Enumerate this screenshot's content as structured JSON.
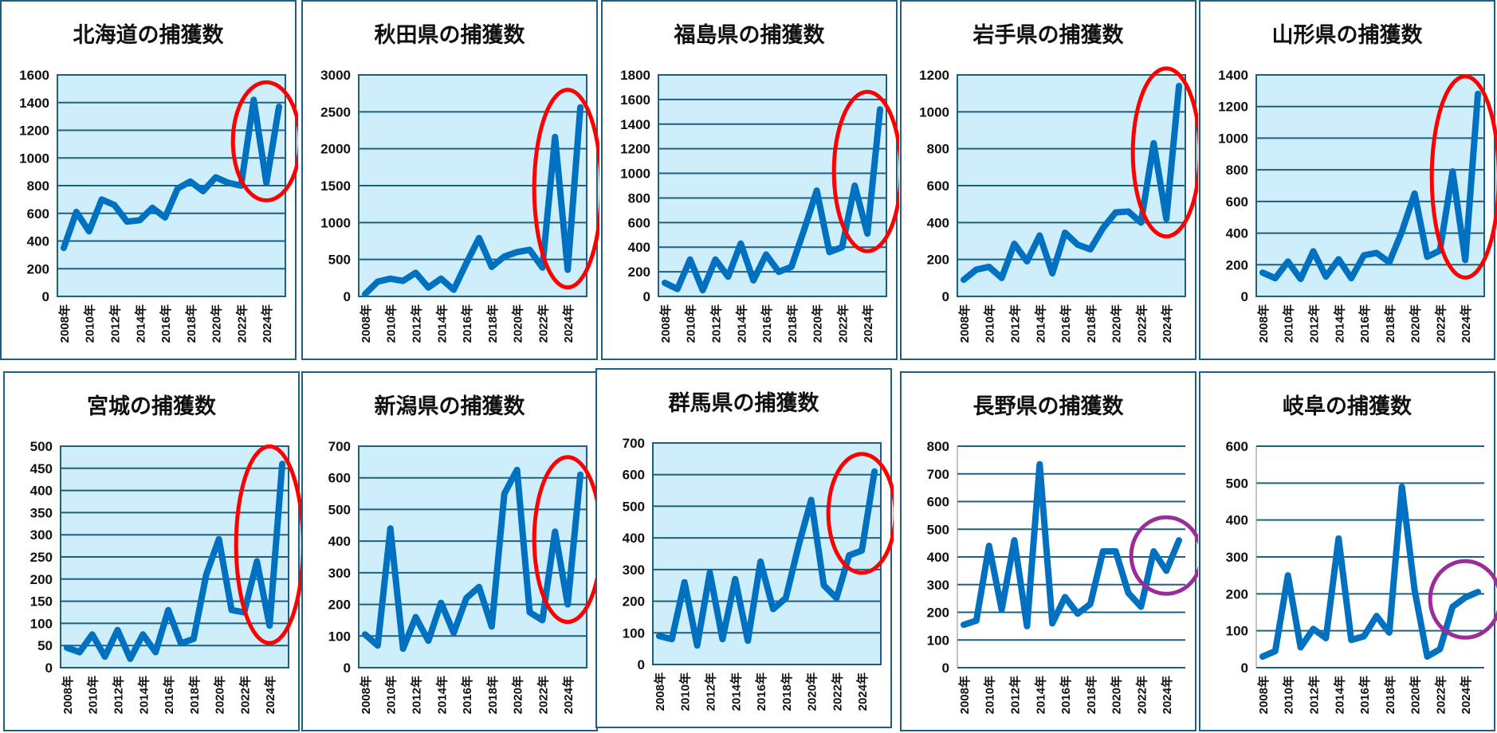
{
  "years": [
    "2008",
    "2009",
    "2010",
    "2011",
    "2012",
    "2013",
    "2014",
    "2015",
    "2016",
    "2017",
    "2018",
    "2019",
    "2020",
    "2021",
    "2022",
    "2023",
    "2024",
    "2025"
  ],
  "year_suffix": "年",
  "colors": {
    "line": "#0070c0",
    "plot_bg": "#cdeefa",
    "grid": "#1f5f7f",
    "highlight_red": "#ff0000",
    "highlight_purple": "#9b2d9b"
  },
  "chart_data": [
    {
      "type": "line",
      "title": "北海道の捕獲数",
      "ylim": [
        0,
        1600
      ],
      "ystep": 200,
      "plot_bg": true,
      "highlight": "red",
      "values": [
        350,
        610,
        470,
        700,
        660,
        540,
        550,
        640,
        570,
        780,
        830,
        760,
        860,
        820,
        800,
        1420,
        820,
        1370
      ]
    },
    {
      "type": "line",
      "title": "秋田県の捕獲数",
      "ylim": [
        0,
        3000
      ],
      "ystep": 500,
      "plot_bg": true,
      "highlight": "red",
      "values": [
        30,
        200,
        240,
        210,
        320,
        120,
        240,
        90,
        450,
        790,
        400,
        540,
        600,
        630,
        390,
        2160,
        360,
        2560
      ]
    },
    {
      "type": "line",
      "title": "福島県の捕獲数",
      "ylim": [
        0,
        1800
      ],
      "ystep": 200,
      "plot_bg": true,
      "highlight": "red",
      "values": [
        110,
        60,
        300,
        50,
        300,
        160,
        430,
        130,
        340,
        200,
        240,
        540,
        860,
        360,
        400,
        900,
        510,
        1520
      ]
    },
    {
      "type": "line",
      "title": "岩手県の捕獲数",
      "ylim": [
        0,
        1200
      ],
      "ystep": 200,
      "plot_bg": true,
      "highlight": "red",
      "values": [
        90,
        145,
        160,
        100,
        285,
        190,
        330,
        125,
        345,
        280,
        255,
        370,
        455,
        460,
        400,
        830,
        420,
        1140
      ]
    },
    {
      "type": "line",
      "title": "山形県の捕獲数",
      "ylim": [
        0,
        1400
      ],
      "ystep": 200,
      "plot_bg": true,
      "highlight": "red",
      "values": [
        150,
        115,
        220,
        110,
        285,
        125,
        235,
        115,
        260,
        275,
        215,
        410,
        650,
        250,
        290,
        790,
        230,
        1280
      ]
    },
    {
      "type": "line",
      "title": "宮城の捕獲数",
      "ylim": [
        0,
        500
      ],
      "ystep": 50,
      "plot_bg": true,
      "highlight": "red",
      "values": [
        45,
        35,
        75,
        25,
        85,
        20,
        75,
        35,
        130,
        55,
        65,
        210,
        290,
        130,
        125,
        240,
        95,
        460
      ]
    },
    {
      "type": "line",
      "title": "新潟県の捕獲数",
      "ylim": [
        0,
        700
      ],
      "ystep": 100,
      "plot_bg": true,
      "highlight": "red",
      "values": [
        105,
        70,
        440,
        60,
        160,
        85,
        205,
        110,
        220,
        255,
        130,
        550,
        625,
        175,
        150,
        430,
        200,
        610
      ]
    },
    {
      "type": "line",
      "title": "群馬県の捕獲数",
      "ylim": [
        0,
        700
      ],
      "ystep": 100,
      "plot_bg": true,
      "highlight": "red",
      "values": [
        90,
        80,
        260,
        60,
        290,
        80,
        270,
        75,
        325,
        175,
        210,
        375,
        520,
        250,
        210,
        345,
        360,
        610
      ]
    },
    {
      "type": "line",
      "title": "長野県の捕獲数",
      "ylim": [
        0,
        800
      ],
      "ystep": 100,
      "plot_bg": false,
      "highlight": "purple",
      "values": [
        155,
        170,
        440,
        210,
        460,
        150,
        735,
        160,
        255,
        195,
        230,
        420,
        420,
        270,
        220,
        420,
        350,
        460
      ]
    },
    {
      "type": "line",
      "title": "岐阜の捕獲数",
      "ylim": [
        0,
        600
      ],
      "ystep": 100,
      "plot_bg": false,
      "highlight": "purple",
      "values": [
        30,
        45,
        250,
        55,
        105,
        80,
        350,
        75,
        85,
        140,
        95,
        490,
        210,
        30,
        50,
        165,
        190,
        205
      ]
    }
  ]
}
